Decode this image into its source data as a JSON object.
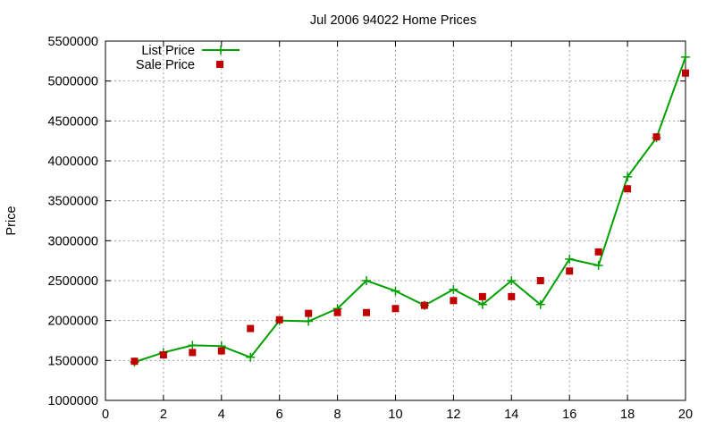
{
  "chart_data": {
    "type": "line",
    "title": "Jul 2006 94022 Home Prices",
    "xlabel": "",
    "ylabel": "Price",
    "xlim": [
      0,
      20
    ],
    "ylim": [
      1000000,
      5500000
    ],
    "x_ticks": [
      0,
      2,
      4,
      6,
      8,
      10,
      12,
      14,
      16,
      18,
      20
    ],
    "y_ticks": [
      1000000,
      1500000,
      2000000,
      2500000,
      3000000,
      3500000,
      4000000,
      4500000,
      5000000,
      5500000
    ],
    "grid": true,
    "legend_position": "top-left",
    "series": [
      {
        "name": "List Price",
        "style": "line-plus",
        "color": "#00a000",
        "x": [
          1,
          2,
          3,
          4,
          5,
          6,
          7,
          8,
          9,
          10,
          11,
          12,
          13,
          14,
          15,
          16,
          17,
          18,
          19,
          20
        ],
        "values": [
          1480000,
          1600000,
          1690000,
          1680000,
          1540000,
          2000000,
          1990000,
          2150000,
          2500000,
          2370000,
          2190000,
          2390000,
          2200000,
          2500000,
          2200000,
          2770000,
          2690000,
          3800000,
          4290000,
          5300000
        ]
      },
      {
        "name": "Sale Price",
        "style": "square-points",
        "color": "#c00000",
        "x": [
          1,
          2,
          3,
          4,
          5,
          6,
          7,
          8,
          9,
          10,
          11,
          12,
          13,
          14,
          15,
          16,
          17,
          18,
          19,
          20
        ],
        "values": [
          1490000,
          1570000,
          1600000,
          1620000,
          1900000,
          2010000,
          2090000,
          2100000,
          2100000,
          2150000,
          2190000,
          2250000,
          2300000,
          2300000,
          2500000,
          2620000,
          2860000,
          3650000,
          4300000,
          5100000
        ]
      }
    ]
  }
}
